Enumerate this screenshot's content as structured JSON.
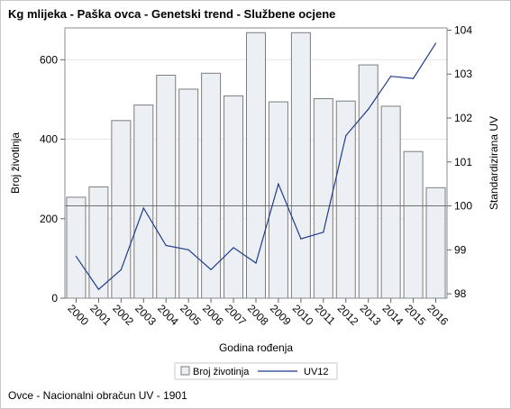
{
  "title": "Kg mlijeka - Paška ovca - Genetski trend - Službene ocjene",
  "footnote": "Ovce - Nacionalni obračun UV - 1901",
  "chart_data": {
    "type": "bar",
    "categories": [
      "2000",
      "2001",
      "2002",
      "2003",
      "2004",
      "2005",
      "2006",
      "2007",
      "2008",
      "2009",
      "2010",
      "2011",
      "2012",
      "2013",
      "2014",
      "2015",
      "2016"
    ],
    "xlabel": "Godina rođenja",
    "ylabel_left": "Broj životinja",
    "ylabel_right": "Standardizirana UV",
    "ylim_left": [
      0,
      680
    ],
    "yticks_left": [
      0,
      200,
      400,
      600
    ],
    "ylim_right": [
      97.9,
      104.05
    ],
    "yticks_right": [
      98,
      99,
      100,
      101,
      102,
      103,
      104
    ],
    "reference_line_right": 100,
    "grid": true,
    "legend_position": "bottom-center",
    "series": [
      {
        "name": "Broj životinja",
        "type": "bar",
        "axis": "left",
        "color": "#eceff4",
        "stroke": "#7d7d7d",
        "values": [
          254,
          280,
          447,
          486,
          561,
          526,
          566,
          509,
          668,
          494,
          668,
          502,
          496,
          587,
          483,
          369,
          278
        ]
      },
      {
        "name": "UV12",
        "type": "line",
        "axis": "right",
        "color": "#1f3b8c",
        "values": [
          98.85,
          98.1,
          98.55,
          99.95,
          99.1,
          99.0,
          98.55,
          99.05,
          98.7,
          100.5,
          99.25,
          99.4,
          101.6,
          102.2,
          102.95,
          102.9,
          103.7
        ]
      }
    ]
  }
}
